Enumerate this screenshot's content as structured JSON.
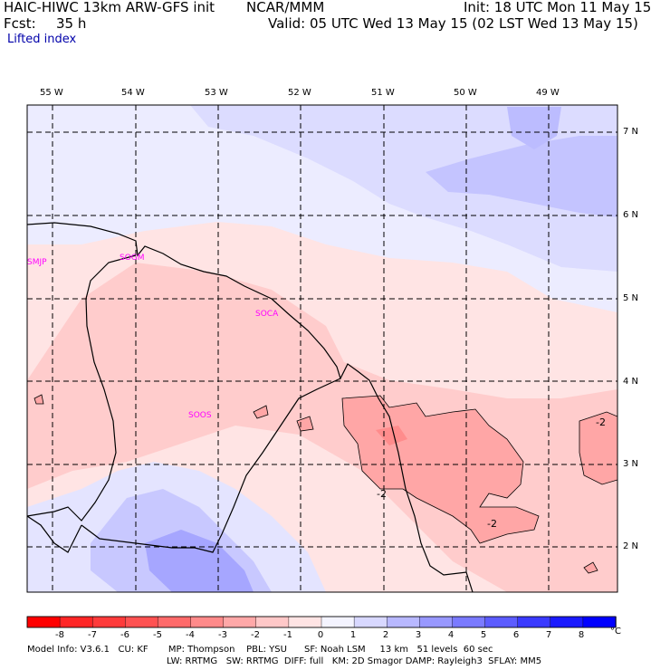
{
  "header": {
    "model": "HAIC-HIWC 13km ARW-GFS init",
    "org": "NCAR/MMM",
    "init": "Init: 18 UTC Mon 11 May 15",
    "fcst_label": "Fcst:",
    "fcst_value": "35 h",
    "valid": "Valid: 05 UTC Wed 13 May 15 (02 LST Wed 13 May 15)",
    "field": "Lifted index"
  },
  "axes": {
    "lon_labels": [
      "55 W",
      "54 W",
      "53 W",
      "52 W",
      "51 W",
      "50 W",
      "49 W"
    ],
    "lat_labels": [
      "7 N",
      "6 N",
      "5 N",
      "4 N",
      "3 N",
      "2 N"
    ]
  },
  "stations": [
    "SMJP",
    "SOGM",
    "SOCA",
    "SOOS"
  ],
  "contour_labels": [
    "-2",
    "-2",
    "-2"
  ],
  "colorbar": {
    "labels": [
      "-8",
      "-7",
      "-6",
      "-5",
      "-4",
      "-3",
      "-2",
      "-1",
      "0",
      "1",
      "2",
      "3",
      "4",
      "5",
      "6",
      "7",
      "8"
    ],
    "unit": "°C",
    "colors": [
      "#ff0000",
      "#ff2626",
      "#ff3b3b",
      "#ff5252",
      "#ff6a6a",
      "#ff8a8a",
      "#ffa8a8",
      "#ffc8c8",
      "#ffe4e4",
      "#f4f4ff",
      "#d8d8ff",
      "#b8b8ff",
      "#9898ff",
      "#7a7aff",
      "#5c5cff",
      "#3a3aff",
      "#1a1aff",
      "#0000ff"
    ]
  },
  "footer": {
    "line1": "Model Info: V3.6.1   CU: KF       MP: Thompson    PBL: YSU      SF: Noah LSM     13 km   51 levels  60 sec",
    "line2": "LW: RRTMG   SW: RRTMG  DIFF: full   KM: 2D Smagor DAMP: Rayleigh3  SFLAY: MM5"
  },
  "colors": {
    "warm_light": "#ffe2e2",
    "warm_mid": "#ffc4c4",
    "warm_strong": "#ff9c9c",
    "cool_light": "#ececff",
    "cool_mid": "#d2d2ff",
    "cool_strong": "#a8a8ff",
    "station": "#ff00ff"
  }
}
